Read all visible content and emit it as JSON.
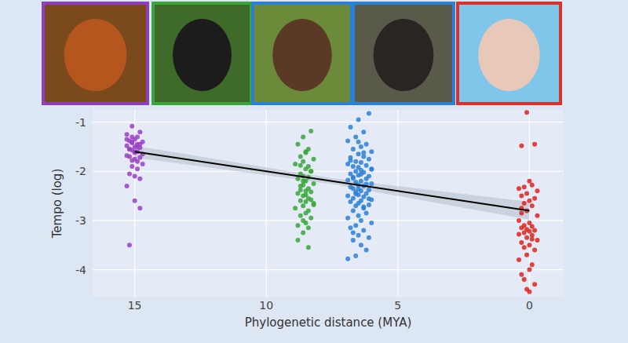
{
  "chart_data": {
    "type": "scatter",
    "x_label": "Phylogenetic distance (MYA)",
    "y_label": "Tempo (log)",
    "xlim": [
      16.6,
      -1.3
    ],
    "xticks": [
      15,
      10,
      5,
      0
    ],
    "ylim": [
      -4.55,
      -0.75
    ],
    "yticks": [
      -1,
      -2,
      -3,
      -4
    ],
    "grid": true,
    "series": [
      {
        "type": "scatter",
        "color": "#9b3fc6",
        "marker": "circle",
        "x": [
          15.1,
          14.8,
          15.3,
          14.9,
          15.0,
          15.2,
          14.7,
          15.1,
          14.9,
          15.3,
          15.0,
          14.8,
          15.2,
          15.1,
          14.9,
          15.0,
          14.7,
          15.3,
          15.2,
          14.8,
          15.0,
          15.1,
          14.9,
          15.2,
          14.8,
          15.3,
          15.0,
          14.7,
          15.1,
          14.9,
          15.2,
          15.0,
          14.8,
          15.1,
          14.9,
          15.3,
          15.0,
          14.8,
          15.2,
          15.1
        ],
        "values": [
          -1.08,
          -1.2,
          -1.25,
          -1.3,
          -1.35,
          -1.38,
          -1.4,
          -1.42,
          -1.45,
          -1.48,
          -1.5,
          -1.52,
          -1.55,
          -1.57,
          -1.6,
          -1.62,
          -1.65,
          -1.68,
          -1.7,
          -1.72,
          -1.75,
          -1.78,
          -1.8,
          -1.55,
          -1.45,
          -1.35,
          -1.6,
          -1.85,
          -1.9,
          -1.95,
          -2.05,
          -2.1,
          -2.15,
          -1.3,
          -1.5,
          -2.3,
          -2.6,
          -2.75,
          -3.5,
          -1.4
        ]
      },
      {
        "type": "scatter",
        "color": "#3aa63a",
        "marker": "circle",
        "x": [
          8.3,
          8.6,
          8.8,
          8.4,
          8.5,
          8.7,
          8.2,
          8.6,
          8.9,
          8.4,
          8.5,
          8.3,
          8.7,
          8.6,
          8.4,
          8.8,
          8.5,
          8.2,
          8.6,
          8.7,
          8.4,
          8.5,
          8.3,
          8.8,
          8.6,
          8.4,
          8.7,
          8.5,
          8.2,
          8.6,
          8.9,
          8.4,
          8.5,
          8.7,
          8.3,
          8.6,
          8.5,
          8.8,
          8.4,
          8.6,
          8.3,
          8.7,
          8.5,
          8.2,
          8.6,
          8.4,
          8.8,
          8.5,
          8.7,
          8.3
        ],
        "values": [
          -1.18,
          -1.3,
          -1.45,
          -1.55,
          -1.62,
          -1.7,
          -1.75,
          -1.8,
          -1.85,
          -1.9,
          -1.95,
          -2.0,
          -2.05,
          -2.1,
          -2.12,
          -2.15,
          -2.2,
          -2.25,
          -2.28,
          -2.3,
          -2.35,
          -2.4,
          -2.42,
          -2.45,
          -2.5,
          -2.55,
          -2.6,
          -2.62,
          -2.65,
          -2.7,
          -2.75,
          -2.8,
          -2.85,
          -2.9,
          -2.95,
          -3.0,
          -3.05,
          -3.1,
          -3.15,
          -2.2,
          -2.0,
          -1.88,
          -2.48,
          -2.68,
          -3.25,
          -3.55,
          -3.4,
          -1.6,
          -2.38,
          -2.58
        ]
      },
      {
        "type": "scatter",
        "color": "#2b80d6",
        "marker": "circle",
        "x": [
          6.1,
          6.5,
          6.8,
          6.3,
          6.6,
          6.9,
          6.2,
          6.4,
          6.7,
          6.0,
          6.5,
          6.3,
          6.8,
          6.1,
          6.6,
          6.4,
          6.9,
          6.2,
          6.7,
          6.5,
          6.0,
          6.4,
          6.6,
          6.3,
          6.8,
          6.5,
          6.1,
          6.7,
          6.2,
          6.9,
          6.4,
          6.6,
          6.0,
          6.5,
          6.3,
          6.8,
          6.7,
          6.1,
          6.4,
          6.6,
          6.2,
          6.5,
          6.9,
          6.3,
          6.7,
          6.0,
          6.4,
          6.8,
          6.5,
          6.1,
          6.6,
          6.3,
          6.7,
          6.2,
          6.5,
          6.9,
          6.4,
          6.0,
          6.6,
          6.8,
          6.3,
          6.5,
          6.1,
          6.7,
          6.4,
          6.2,
          6.6,
          6.9,
          6.5,
          6.3,
          6.8,
          6.0,
          6.4,
          6.7,
          6.2,
          6.5,
          6.6,
          6.1,
          6.3,
          6.7
        ],
        "values": [
          -0.82,
          -0.95,
          -1.1,
          -1.2,
          -1.3,
          -1.38,
          -1.45,
          -1.5,
          -1.55,
          -1.6,
          -1.65,
          -1.7,
          -1.72,
          -1.75,
          -1.8,
          -1.82,
          -1.85,
          -1.88,
          -1.9,
          -1.92,
          -1.95,
          -1.98,
          -2.0,
          -2.02,
          -2.05,
          -2.08,
          -2.1,
          -2.12,
          -2.15,
          -2.18,
          -2.2,
          -2.22,
          -2.25,
          -2.28,
          -2.3,
          -2.32,
          -2.35,
          -2.38,
          -2.4,
          -2.42,
          -2.45,
          -2.48,
          -2.5,
          -2.52,
          -2.55,
          -2.58,
          -2.6,
          -2.62,
          -2.65,
          -2.68,
          -2.7,
          -2.75,
          -2.8,
          -2.85,
          -2.9,
          -2.95,
          -3.0,
          -3.05,
          -3.1,
          -3.15,
          -3.2,
          -3.3,
          -3.35,
          -3.4,
          -3.5,
          -3.6,
          -3.72,
          -3.78,
          -1.4,
          -1.62,
          -1.78,
          -1.96,
          -2.06,
          -2.14,
          -2.26,
          -2.36,
          -2.46,
          -2.56,
          -2.72,
          -3.25
        ]
      },
      {
        "type": "scatter",
        "color": "#e0231d",
        "marker": "circle",
        "x": [
          0.1,
          -0.2,
          0.3,
          0.0,
          -0.1,
          0.2,
          0.4,
          -0.3,
          0.1,
          0.3,
          -0.2,
          0.0,
          0.2,
          -0.1,
          0.3,
          0.1,
          -0.3,
          0.4,
          0.0,
          0.2,
          -0.1,
          0.3,
          0.1,
          -0.2,
          0.0,
          0.2,
          0.4,
          -0.1,
          0.1,
          -0.3,
          0.3,
          0.0,
          0.2,
          -0.2,
          0.1,
          0.4,
          -0.1,
          0.0,
          0.3,
          0.2,
          -0.2,
          0.1,
          0.0,
          0.3,
          -0.1
        ],
        "values": [
          -0.8,
          -1.45,
          -1.48,
          -2.2,
          -2.28,
          -2.32,
          -2.35,
          -2.4,
          -2.45,
          -2.5,
          -2.55,
          -2.6,
          -2.65,
          -2.7,
          -2.75,
          -2.8,
          -2.9,
          -3.0,
          -3.05,
          -3.1,
          -3.12,
          -3.15,
          -3.18,
          -3.2,
          -3.22,
          -3.25,
          -3.28,
          -3.3,
          -3.35,
          -3.4,
          -3.45,
          -3.5,
          -3.55,
          -3.6,
          -3.7,
          -3.8,
          -3.9,
          -4.0,
          -4.1,
          -4.2,
          -4.3,
          -4.4,
          -4.45,
          -2.85,
          -3.38
        ]
      },
      {
        "type": "line",
        "color": "#000000",
        "line_style": "solid",
        "x": [
          15,
          7.5,
          0
        ],
        "values": [
          -1.6,
          -2.2,
          -2.8
        ],
        "lower": [
          -1.72,
          -2.26,
          -2.98
        ],
        "upper": [
          -1.48,
          -2.14,
          -2.62
        ]
      }
    ]
  }
}
